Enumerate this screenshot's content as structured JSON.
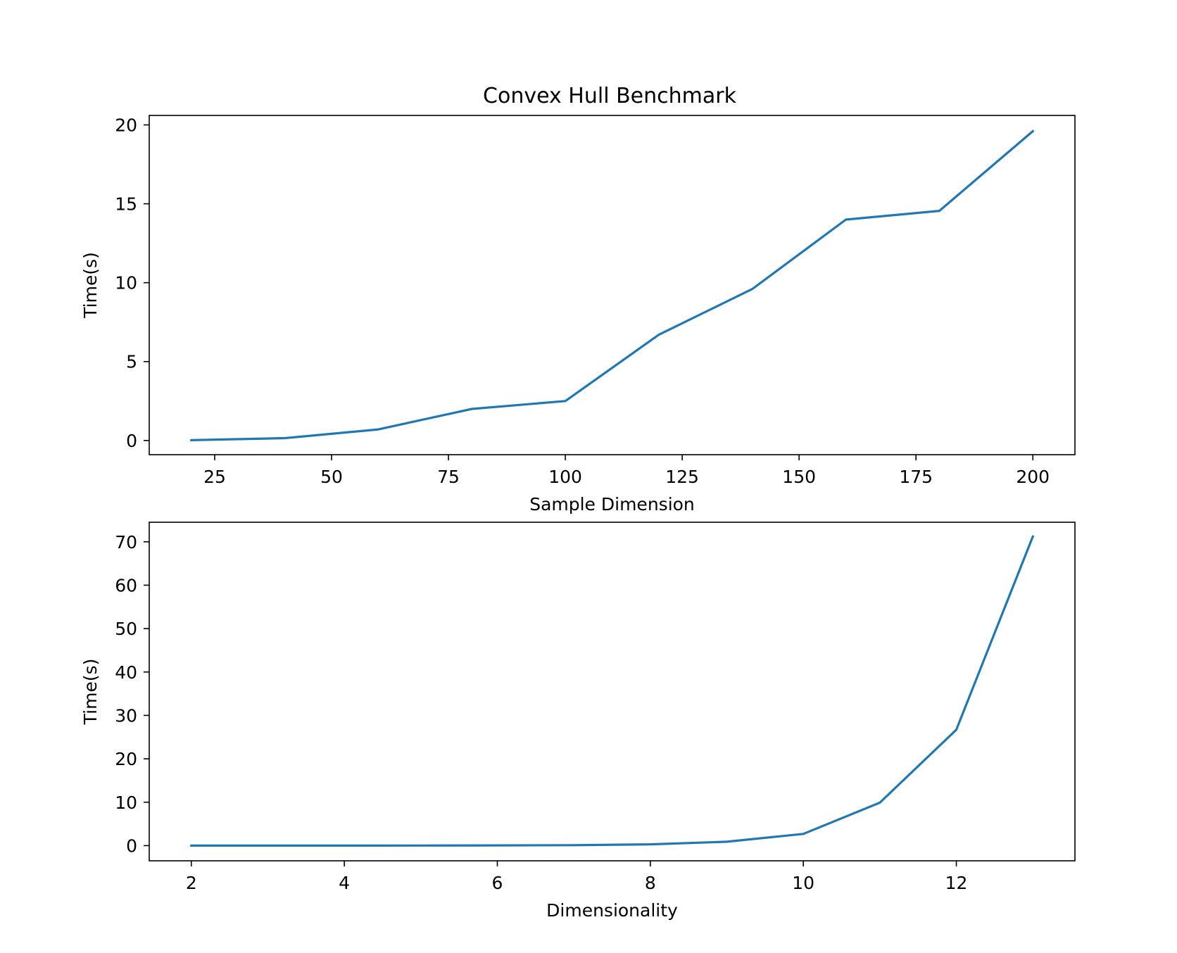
{
  "chart_data": [
    {
      "type": "line",
      "title": "Convex Hull Benchmark",
      "xlabel": "Sample Dimension",
      "ylabel": "Time(s)",
      "xlim": [
        11,
        209
      ],
      "ylim": [
        -0.9,
        20.6
      ],
      "xticks": [
        25,
        50,
        75,
        100,
        125,
        150,
        175,
        200
      ],
      "xtick_labels": [
        "25",
        "50",
        "75",
        "100",
        "125",
        "150",
        "175",
        "200"
      ],
      "yticks": [
        0,
        5,
        10,
        15,
        20
      ],
      "ytick_labels": [
        "0",
        "5",
        "10",
        "15",
        "20"
      ],
      "grid": false,
      "line_color": "#1f77b4",
      "series": [
        {
          "x": [
            20,
            40,
            60,
            80,
            100,
            120,
            140,
            160,
            180,
            200
          ],
          "y": [
            0.02,
            0.15,
            0.7,
            2.0,
            2.5,
            6.7,
            9.6,
            14.0,
            14.55,
            19.6
          ]
        }
      ]
    },
    {
      "type": "line",
      "title": "",
      "xlabel": "Dimensionality",
      "ylabel": "Time(s)",
      "xlim": [
        1.45,
        13.55
      ],
      "ylim": [
        -3.5,
        74.5
      ],
      "xticks": [
        2,
        4,
        6,
        8,
        10,
        12
      ],
      "xtick_labels": [
        "2",
        "4",
        "6",
        "8",
        "10",
        "12"
      ],
      "yticks": [
        0,
        10,
        20,
        30,
        40,
        50,
        60,
        70
      ],
      "ytick_labels": [
        "0",
        "10",
        "20",
        "30",
        "40",
        "50",
        "60",
        "70"
      ],
      "grid": false,
      "line_color": "#1f77b4",
      "series": [
        {
          "x": [
            2,
            3,
            4,
            5,
            6,
            7,
            8,
            9,
            10,
            11,
            12,
            13
          ],
          "y": [
            0.0,
            0.0,
            0.0,
            0.02,
            0.05,
            0.1,
            0.3,
            0.9,
            2.7,
            9.9,
            26.7,
            71.2
          ]
        }
      ]
    }
  ]
}
